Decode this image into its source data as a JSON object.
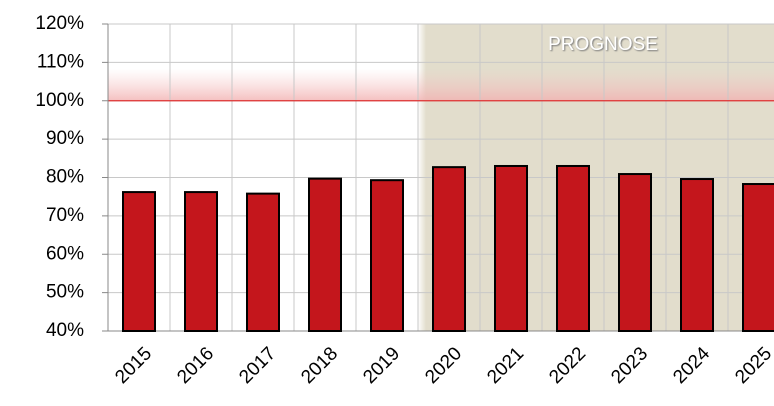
{
  "chart_data": {
    "type": "bar",
    "categories": [
      "2015",
      "2016",
      "2017",
      "2018",
      "2019",
      "2020",
      "2021",
      "2022",
      "2023",
      "2024",
      "2025"
    ],
    "values": [
      76.2,
      76.2,
      75.8,
      79.7,
      79.3,
      82.7,
      83,
      83,
      80.9,
      79.6,
      78.3
    ],
    "color": "#c4161c",
    "ylim": [
      40,
      120
    ],
    "yticks": [
      {
        "value": 40,
        "label": "40%"
      },
      {
        "value": 50,
        "label": "50%"
      },
      {
        "value": 60,
        "label": "60%"
      },
      {
        "value": 70,
        "label": "70%"
      },
      {
        "value": 80,
        "label": "80%"
      },
      {
        "value": 90,
        "label": "90%"
      },
      {
        "value": 100,
        "label": "100%"
      },
      {
        "value": 110,
        "label": "110%"
      },
      {
        "value": 120,
        "label": "120%"
      }
    ],
    "grid": true,
    "reference_line": 100,
    "forecast_from": "2020",
    "annotation": "PROGNOSE"
  }
}
